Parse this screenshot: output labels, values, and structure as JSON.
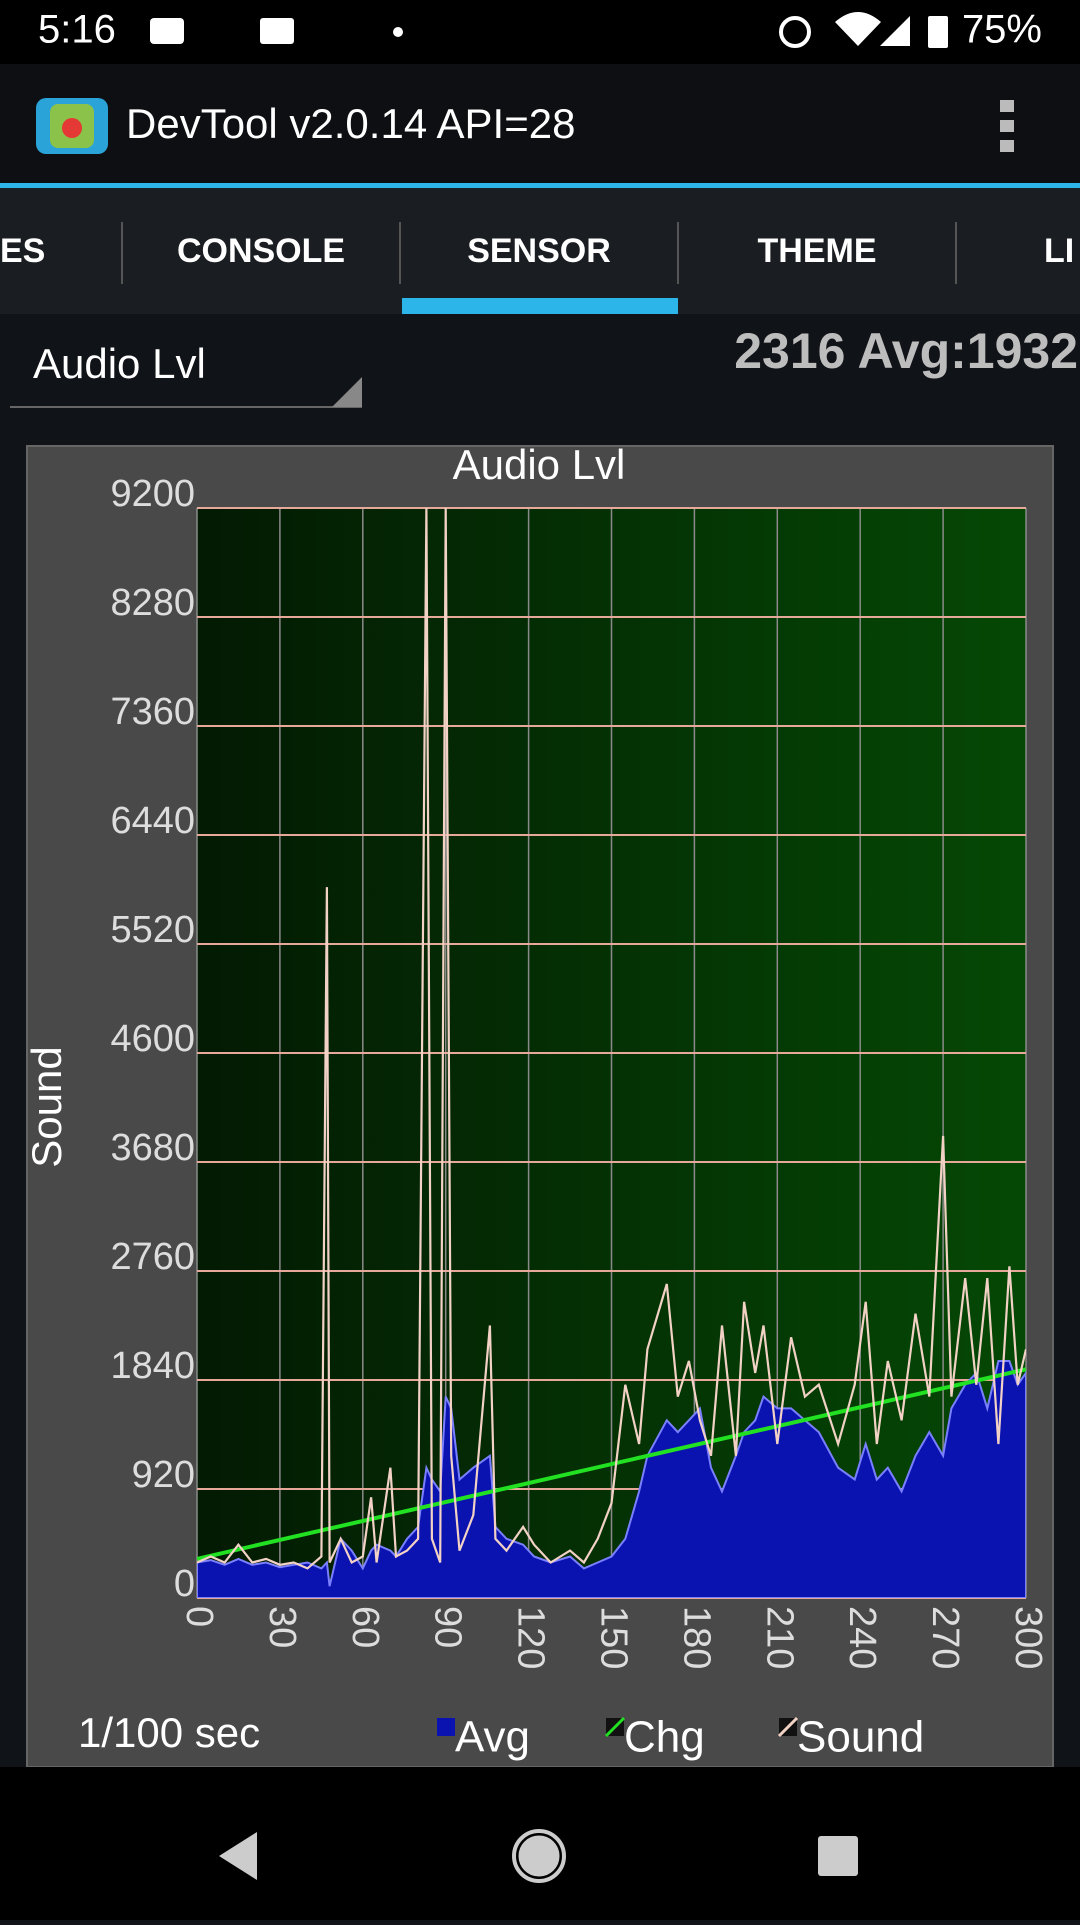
{
  "status_bar": {
    "time": "5:16",
    "battery": "75%"
  },
  "app_bar": {
    "title": "DevTool v2.0.14 API=28"
  },
  "tabs": [
    "ES",
    "CONSOLE",
    "SENSOR",
    "THEME",
    "LI"
  ],
  "selector": {
    "selected": "Audio Lvl"
  },
  "reading": "2316 Avg:1932",
  "chart_data": {
    "type": "line",
    "title": "Audio Lvl",
    "x_label": "1/100 sec",
    "y_label": "Sound",
    "xlim": [
      0,
      300
    ],
    "xticks": [
      0,
      30,
      60,
      90,
      120,
      150,
      180,
      210,
      240,
      270,
      300
    ],
    "ylim": [
      0,
      9200
    ],
    "yticks": [
      0,
      920,
      1840,
      2760,
      3680,
      4600,
      5520,
      6440,
      7360,
      8280,
      9200
    ],
    "grid": true,
    "x": [
      0,
      5,
      10,
      15,
      20,
      25,
      30,
      35,
      40,
      45,
      47,
      48,
      52,
      56,
      60,
      63,
      65,
      70,
      72,
      76,
      80,
      83,
      85,
      88,
      90,
      92,
      95,
      100,
      106,
      108,
      112,
      118,
      122,
      128,
      135,
      140,
      145,
      150,
      155,
      160,
      163,
      170,
      174,
      178,
      182,
      186,
      190,
      195,
      198,
      202,
      205,
      210,
      215,
      220,
      225,
      232,
      238,
      242,
      246,
      250,
      255,
      260,
      265,
      270,
      273,
      278,
      282,
      286,
      290,
      294,
      297,
      300
    ],
    "series": [
      {
        "name": "Avg",
        "color": "#0a12b0",
        "style": "area",
        "values": [
          300,
          320,
          280,
          330,
          280,
          300,
          260,
          280,
          300,
          250,
          300,
          100,
          500,
          400,
          250,
          400,
          450,
          400,
          350,
          500,
          600,
          1100,
          1000,
          900,
          1700,
          1600,
          1000,
          1100,
          1200,
          600,
          500,
          450,
          350,
          300,
          350,
          250,
          300,
          350,
          500,
          900,
          1200,
          1500,
          1400,
          1500,
          1600,
          1100,
          900,
          1200,
          1400,
          1500,
          1700,
          1600,
          1600,
          1500,
          1400,
          1100,
          1000,
          1300,
          1000,
          1100,
          900,
          1200,
          1400,
          1200,
          1600,
          1800,
          1900,
          1600,
          2000,
          2000,
          1800,
          1900
        ]
      },
      {
        "name": "Chg",
        "color": "#22e022",
        "style": "line",
        "x": [
          0,
          300
        ],
        "values": [
          330,
          1930
        ]
      },
      {
        "name": "Sound",
        "color": "#f3d2c6",
        "style": "line",
        "values": [
          300,
          350,
          300,
          450,
          300,
          330,
          280,
          300,
          250,
          350,
          6000,
          300,
          500,
          300,
          350,
          850,
          300,
          1100,
          350,
          400,
          500,
          9200,
          500,
          300,
          9200,
          1200,
          400,
          700,
          2300,
          500,
          400,
          600,
          450,
          300,
          400,
          300,
          500,
          800,
          1800,
          1300,
          2100,
          2650,
          1700,
          2000,
          1500,
          1200,
          2300,
          1200,
          2500,
          1900,
          2300,
          1300,
          2200,
          1700,
          1800,
          1300,
          1800,
          2500,
          1300,
          2000,
          1500,
          2400,
          1700,
          3900,
          1700,
          2700,
          1800,
          2700,
          1300,
          2800,
          1800,
          2100
        ]
      }
    ]
  }
}
